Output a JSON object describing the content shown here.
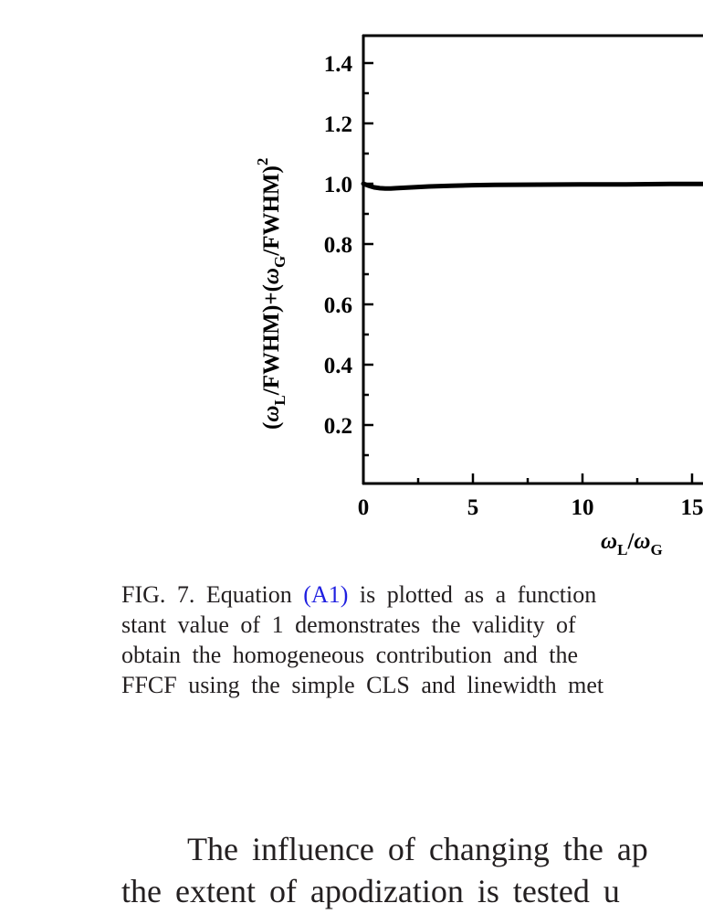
{
  "chart_data": {
    "type": "line",
    "title": "",
    "xlabel": "ωL/ωG",
    "ylabel": "(ωL/FWHM)+(ωG/FWHM)^2",
    "xlim": [
      0,
      16
    ],
    "ylim": [
      0,
      1.5
    ],
    "x_ticks": [
      0,
      5,
      10,
      15
    ],
    "x_minor_ticks": [
      2.5,
      7.5,
      12.5
    ],
    "y_ticks": [
      0.2,
      0.4,
      0.6,
      0.8,
      1.0,
      1.2,
      1.4
    ],
    "y_minor_ticks": [
      0.1,
      0.3,
      0.5,
      0.7,
      0.9,
      1.1,
      1.3
    ],
    "grid": false,
    "legend": null,
    "series": [
      {
        "name": "Equation (A1)",
        "x": [
          0,
          0.25,
          0.5,
          0.75,
          1.0,
          1.25,
          1.5,
          2.0,
          2.5,
          3.0,
          4.0,
          5.0,
          6.0,
          8.0,
          10.0,
          12.0,
          14.0,
          16.0
        ],
        "y": [
          1.0,
          0.993,
          0.988,
          0.985,
          0.984,
          0.984,
          0.985,
          0.987,
          0.989,
          0.991,
          0.993,
          0.995,
          0.996,
          0.997,
          0.998,
          0.998,
          0.999,
          0.999
        ]
      }
    ]
  },
  "figure": {
    "x_tick_labels": [
      "0",
      "5",
      "10",
      "15"
    ],
    "y_tick_labels": [
      "0.2",
      "0.4",
      "0.6",
      "0.8",
      "1.0",
      "1.2",
      "1.4"
    ],
    "x_axis_label": {
      "omega_1": "ω",
      "sub_1": "L",
      "slash": "/",
      "omega_2": "ω",
      "sub_2": "G"
    },
    "y_axis_label": {
      "open_1": "(",
      "omega_1": "ω",
      "sub_1": "L",
      "rest_1": "/FWHM)+(",
      "omega_2": "ω",
      "sub_2": "G",
      "rest_2": "/FWHM)",
      "sup": "2"
    }
  },
  "caption": {
    "line1_prefix": "FIG. 7. Equation ",
    "line1_link": "(A1)",
    "line1_suffix": " is plotted as a function",
    "line2": "stant value of 1 demonstrates the validity of",
    "line3": "obtain the homogeneous contribution and the",
    "line4": "FFCF using the simple CLS and linewidth met"
  },
  "body": {
    "line1": "The influence of changing the ap",
    "line2": "the extent of apodization is tested u"
  },
  "colors": {
    "text": "#231f20",
    "link": "#1f1fe0",
    "plot": "#000000"
  }
}
